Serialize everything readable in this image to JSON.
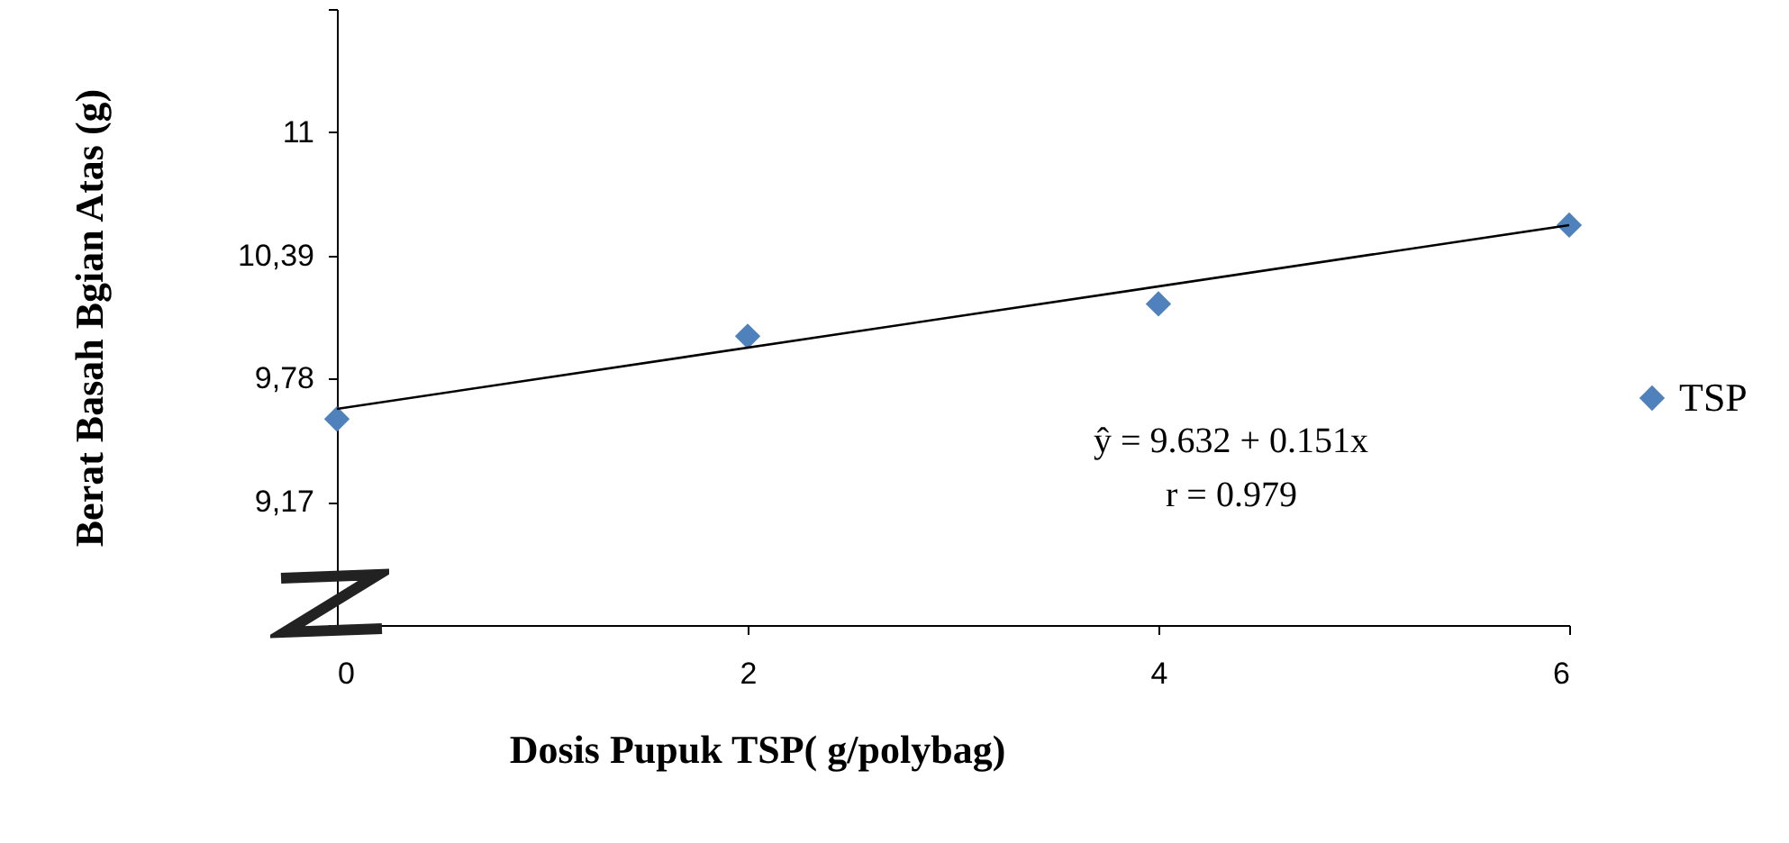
{
  "chart_data": {
    "type": "scatter",
    "xlabel": "Dosis  Pupuk TSP( g/polybag)",
    "ylabel": "Berat Basah Bgian Atas (g)",
    "x": [
      0,
      2,
      4,
      6
    ],
    "series": [
      {
        "name": "TSP",
        "color": "#4f81bd",
        "marker": "diamond",
        "values": [
          9.58,
          9.99,
          10.15,
          10.54
        ]
      },
      {
        "type": "line",
        "color": "#000000",
        "marker": "none",
        "x": [
          0,
          6
        ],
        "values": [
          9.63,
          10.54
        ]
      }
    ],
    "legend": "right",
    "grid": false,
    "xlim": [
      0,
      6
    ],
    "xticks": [
      0,
      2,
      4,
      6
    ],
    "ylim": [
      8.56,
      11.61
    ],
    "yticks": [
      {
        "value": 8.56,
        "label": null
      },
      {
        "value": 9.17,
        "label": "9,17"
      },
      {
        "value": 9.78,
        "label": "9,78"
      },
      {
        "value": 10.39,
        "label": "10,39"
      },
      {
        "value": 11,
        "label": "11"
      },
      {
        "value": 11.61,
        "label": null
      }
    ],
    "annotations": [
      "ŷ =   9.632 + 0.151x",
      "r = 0.979"
    ]
  }
}
